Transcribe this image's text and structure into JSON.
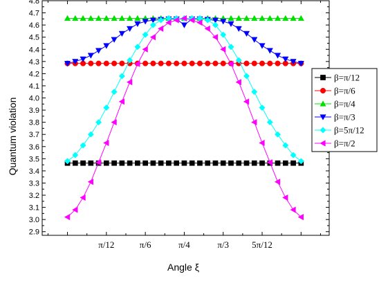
{
  "chart_data": {
    "type": "line",
    "xlabel": "Angle ξ",
    "ylabel": "Quantum violation",
    "x_tick_labels": [
      "π/12",
      "π/6",
      "π/4",
      "π/3",
      "5π/12"
    ],
    "x_tick_values": [
      0.2618,
      0.5236,
      0.7854,
      1.0472,
      1.309
    ],
    "xlim": [
      -0.17,
      1.76
    ],
    "ylim": [
      2.87,
      4.8
    ],
    "y_ticks": [
      2.9,
      3.0,
      3.1,
      3.2,
      3.3,
      3.4,
      3.5,
      3.6,
      3.7,
      3.8,
      3.9,
      4.0,
      4.1,
      4.2,
      4.3,
      4.4,
      4.5,
      4.6,
      4.7,
      4.8
    ],
    "x": [
      0,
      0.0524,
      0.1047,
      0.1571,
      0.2094,
      0.2618,
      0.3142,
      0.3665,
      0.4189,
      0.4712,
      0.5236,
      0.576,
      0.6283,
      0.6807,
      0.733,
      0.7854,
      0.8378,
      0.8901,
      0.9425,
      0.9948,
      1.0472,
      1.0996,
      1.1519,
      1.2043,
      1.2566,
      1.309,
      1.3614,
      1.4137,
      1.4661,
      1.5184,
      1.5708
    ],
    "legend_position": "right",
    "series": [
      {
        "name": "β=π/12",
        "color": "#000000",
        "marker": "square",
        "values": [
          3.464,
          3.464,
          3.464,
          3.464,
          3.464,
          3.464,
          3.464,
          3.464,
          3.464,
          3.464,
          3.464,
          3.464,
          3.464,
          3.464,
          3.464,
          3.464,
          3.464,
          3.464,
          3.464,
          3.464,
          3.464,
          3.464,
          3.464,
          3.464,
          3.464,
          3.464,
          3.464,
          3.464,
          3.464,
          3.464,
          3.464
        ]
      },
      {
        "name": "β=π/6",
        "color": "#ff0000",
        "marker": "circle",
        "values": [
          4.284,
          4.284,
          4.284,
          4.284,
          4.284,
          4.284,
          4.284,
          4.284,
          4.284,
          4.284,
          4.284,
          4.284,
          4.284,
          4.284,
          4.284,
          4.284,
          4.284,
          4.284,
          4.284,
          4.284,
          4.284,
          4.284,
          4.284,
          4.284,
          4.284,
          4.284,
          4.284,
          4.284,
          4.284,
          4.284,
          4.284
        ]
      },
      {
        "name": "β=π/4",
        "color": "#00e000",
        "marker": "triangle-up",
        "values": [
          4.655,
          4.655,
          4.655,
          4.655,
          4.655,
          4.655,
          4.655,
          4.655,
          4.655,
          4.655,
          4.655,
          4.655,
          4.655,
          4.655,
          4.655,
          4.655,
          4.655,
          4.655,
          4.655,
          4.655,
          4.655,
          4.655,
          4.655,
          4.655,
          4.655,
          4.655,
          4.655,
          4.655,
          4.655,
          4.655,
          4.655
        ]
      },
      {
        "name": "β=π/3",
        "color": "#0000ff",
        "marker": "triangle-down",
        "values": [
          4.284,
          4.3,
          4.32,
          4.35,
          4.39,
          4.43,
          4.48,
          4.53,
          4.57,
          4.61,
          4.63,
          4.64,
          4.645,
          4.65,
          4.65,
          4.6,
          4.65,
          4.65,
          4.645,
          4.64,
          4.63,
          4.61,
          4.57,
          4.53,
          4.48,
          4.43,
          4.39,
          4.35,
          4.32,
          4.3,
          4.284
        ]
      },
      {
        "name": "β=5π/12",
        "color": "#00ffff",
        "marker": "diamond",
        "values": [
          3.48,
          3.53,
          3.61,
          3.7,
          3.8,
          3.92,
          4.05,
          4.18,
          4.31,
          4.42,
          4.52,
          4.6,
          4.64,
          4.655,
          4.655,
          4.655,
          4.655,
          4.655,
          4.64,
          4.6,
          4.52,
          4.42,
          4.31,
          4.18,
          4.05,
          3.92,
          3.8,
          3.7,
          3.61,
          3.53,
          3.48
        ]
      },
      {
        "name": "β=π/2",
        "color": "#ff00ff",
        "marker": "triangle-left",
        "values": [
          3.02,
          3.08,
          3.18,
          3.31,
          3.47,
          3.63,
          3.8,
          3.97,
          4.13,
          4.28,
          4.4,
          4.5,
          4.57,
          4.62,
          4.64,
          4.655,
          4.64,
          4.62,
          4.57,
          4.5,
          4.4,
          4.28,
          4.13,
          3.97,
          3.8,
          3.63,
          3.47,
          3.31,
          3.18,
          3.08,
          3.02
        ]
      }
    ]
  }
}
